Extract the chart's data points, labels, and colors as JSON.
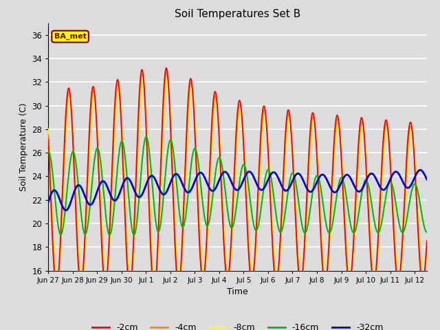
{
  "title": "Soil Temperatures Set B",
  "xlabel": "Time",
  "ylabel": "Soil Temperature (C)",
  "ylim": [
    16,
    37
  ],
  "yticks": [
    16,
    18,
    20,
    22,
    24,
    26,
    28,
    30,
    32,
    34,
    36
  ],
  "background_color": "#dcdcdc",
  "plot_bg_color": "#dcdcdc",
  "grid_color": "#ffffff",
  "legend_label": "BA_met",
  "legend_box_fg": "#ffff00",
  "legend_box_border": "#800000",
  "series_colors": {
    "-2cm": "#ff0000",
    "-4cm": "#ff8800",
    "-8cm": "#ffff00",
    "-16cm": "#00bb00",
    "-32cm": "#0000cc"
  },
  "x_tick_labels": [
    "Jun 27",
    "Jun 28",
    "Jun 29",
    "Jun 30",
    "Jul 1",
    "Jul 2",
    "Jul 3",
    "Jul 4",
    "Jul 5",
    "Jul 6",
    "Jul 7",
    "Jul 8",
    "Jul 9",
    "Jul 10",
    "Jul 11",
    "Jul 12"
  ],
  "num_days": 15.5,
  "samples_per_day": 96
}
